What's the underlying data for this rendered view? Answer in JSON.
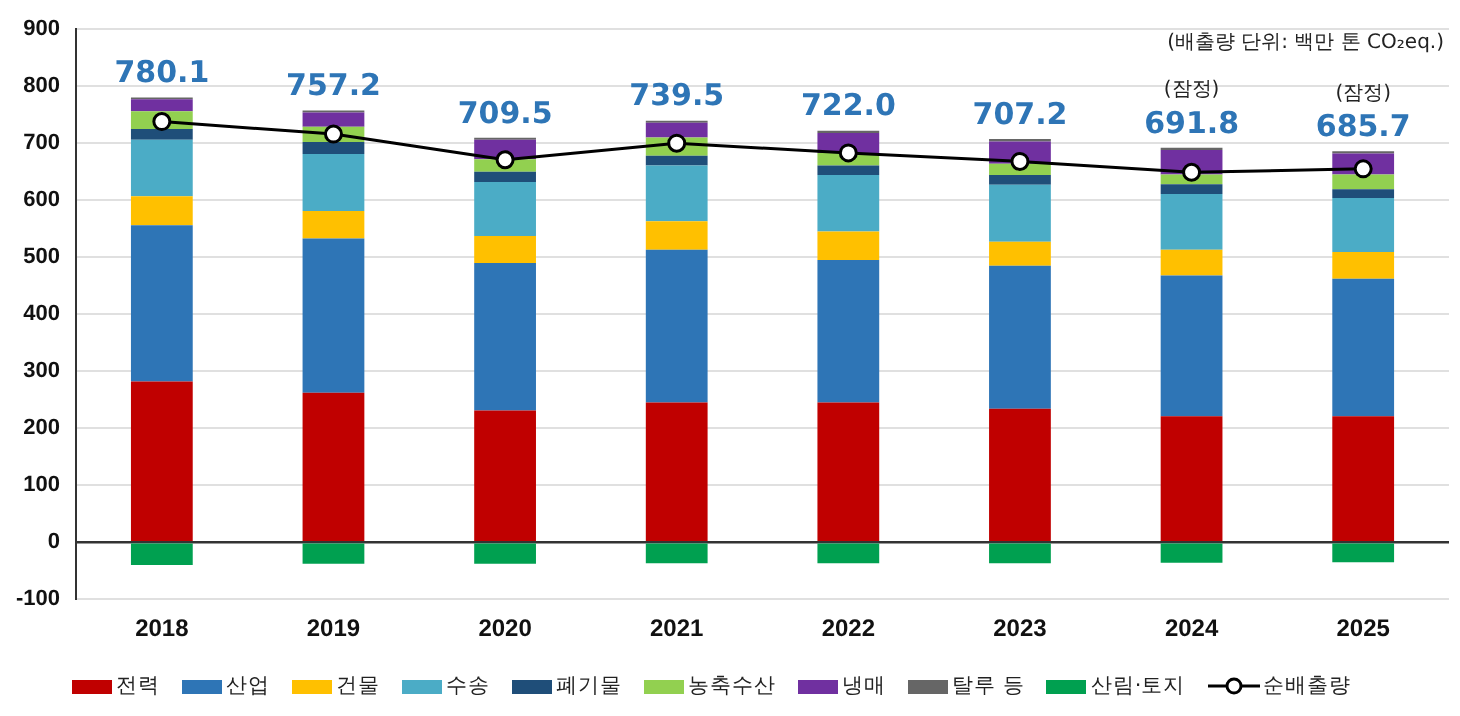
{
  "chart_data": {
    "type": "bar",
    "stacked": true,
    "categories": [
      "2018",
      "2019",
      "2020",
      "2021",
      "2022",
      "2023",
      "2024",
      "2025"
    ],
    "series": [
      {
        "name": "전력",
        "color": "#c00000",
        "values": [
          282,
          262,
          231,
          245,
          245,
          234,
          221,
          221
        ]
      },
      {
        "name": "산업",
        "color": "#2e75b6",
        "values": [
          274,
          271,
          259,
          268,
          250,
          251,
          247,
          241
        ]
      },
      {
        "name": "건물",
        "color": "#ffc000",
        "values": [
          51,
          48,
          47,
          50,
          50,
          42,
          45,
          47
        ]
      },
      {
        "name": "수송",
        "color": "#4bacc6",
        "values": [
          99,
          100,
          95,
          98,
          99,
          100,
          98,
          95
        ]
      },
      {
        "name": "폐기물",
        "color": "#1f4e79",
        "values": [
          19,
          21,
          18,
          17,
          17,
          17,
          17,
          15
        ]
      },
      {
        "name": "농축수산",
        "color": "#92d050",
        "values": [
          31,
          27,
          22,
          32,
          22,
          20,
          17,
          26
        ]
      },
      {
        "name": "냉매",
        "color": "#7030a0",
        "values": [
          21,
          25,
          34,
          26,
          35,
          39,
          43,
          37
        ]
      },
      {
        "name": "탈루 등",
        "color": "#666666",
        "values": [
          3.1,
          3.2,
          3.5,
          3.5,
          4.0,
          4.2,
          3.8,
          3.7
        ]
      },
      {
        "name": "산림·토지",
        "color": "#00a050",
        "values": [
          -40,
          -38,
          -38,
          -37,
          -37,
          -37,
          -36,
          -35
        ]
      },
      {
        "name": "순배출량",
        "type": "line",
        "color": "#000000",
        "marker": "circle",
        "values": [
          738,
          716,
          671,
          700,
          683,
          668,
          649,
          655
        ]
      }
    ],
    "annotations": [
      "(배출량 단위: 백만 톤 CO₂eq.)",
      {
        "text": "780.1",
        "x": "2018",
        "y": 780.1
      },
      {
        "text": "757.2",
        "x": "2019",
        "y": 757.2
      },
      {
        "text": "709.5",
        "x": "2020",
        "y": 709.5
      },
      {
        "text": "739.5",
        "x": "2021",
        "y": 739.5
      },
      {
        "text": "722.0",
        "x": "2022",
        "y": 722.0
      },
      {
        "text": "707.2",
        "x": "2023",
        "y": 707.2
      },
      {
        "text": "691.8",
        "x": "2024",
        "y": 691.8
      },
      {
        "text": "(잠정)",
        "x": "2024",
        "y": 691.8
      },
      {
        "text": "685.7",
        "x": "2025",
        "y": 685.7
      },
      {
        "text": "(잠정)",
        "x": "2025",
        "y": 685.7
      }
    ],
    "ylim": [
      -100,
      900
    ],
    "yticks": [
      -100,
      0,
      100,
      200,
      300,
      400,
      500,
      600,
      700,
      800,
      900
    ],
    "grid": "y",
    "legend": "bottom"
  }
}
